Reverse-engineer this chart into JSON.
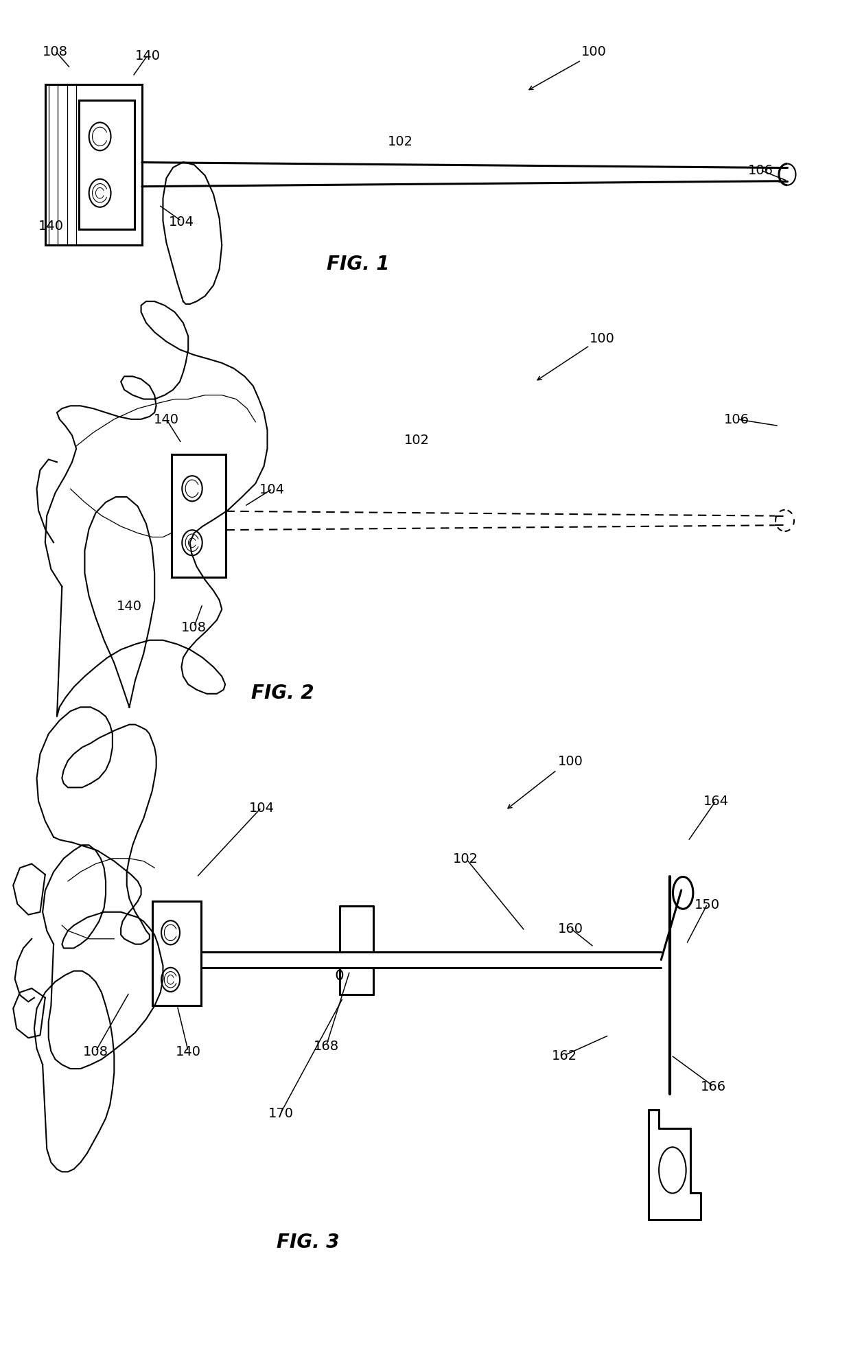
{
  "bg_color": "#ffffff",
  "line_color": "#000000",
  "fig1_label": "FIG. 1",
  "fig2_label": "FIG. 2",
  "fig3_label": "FIG. 3",
  "title_fontsize": 20,
  "label_fontsize": 14,
  "lw": 1.5,
  "lw_thick": 2.2
}
